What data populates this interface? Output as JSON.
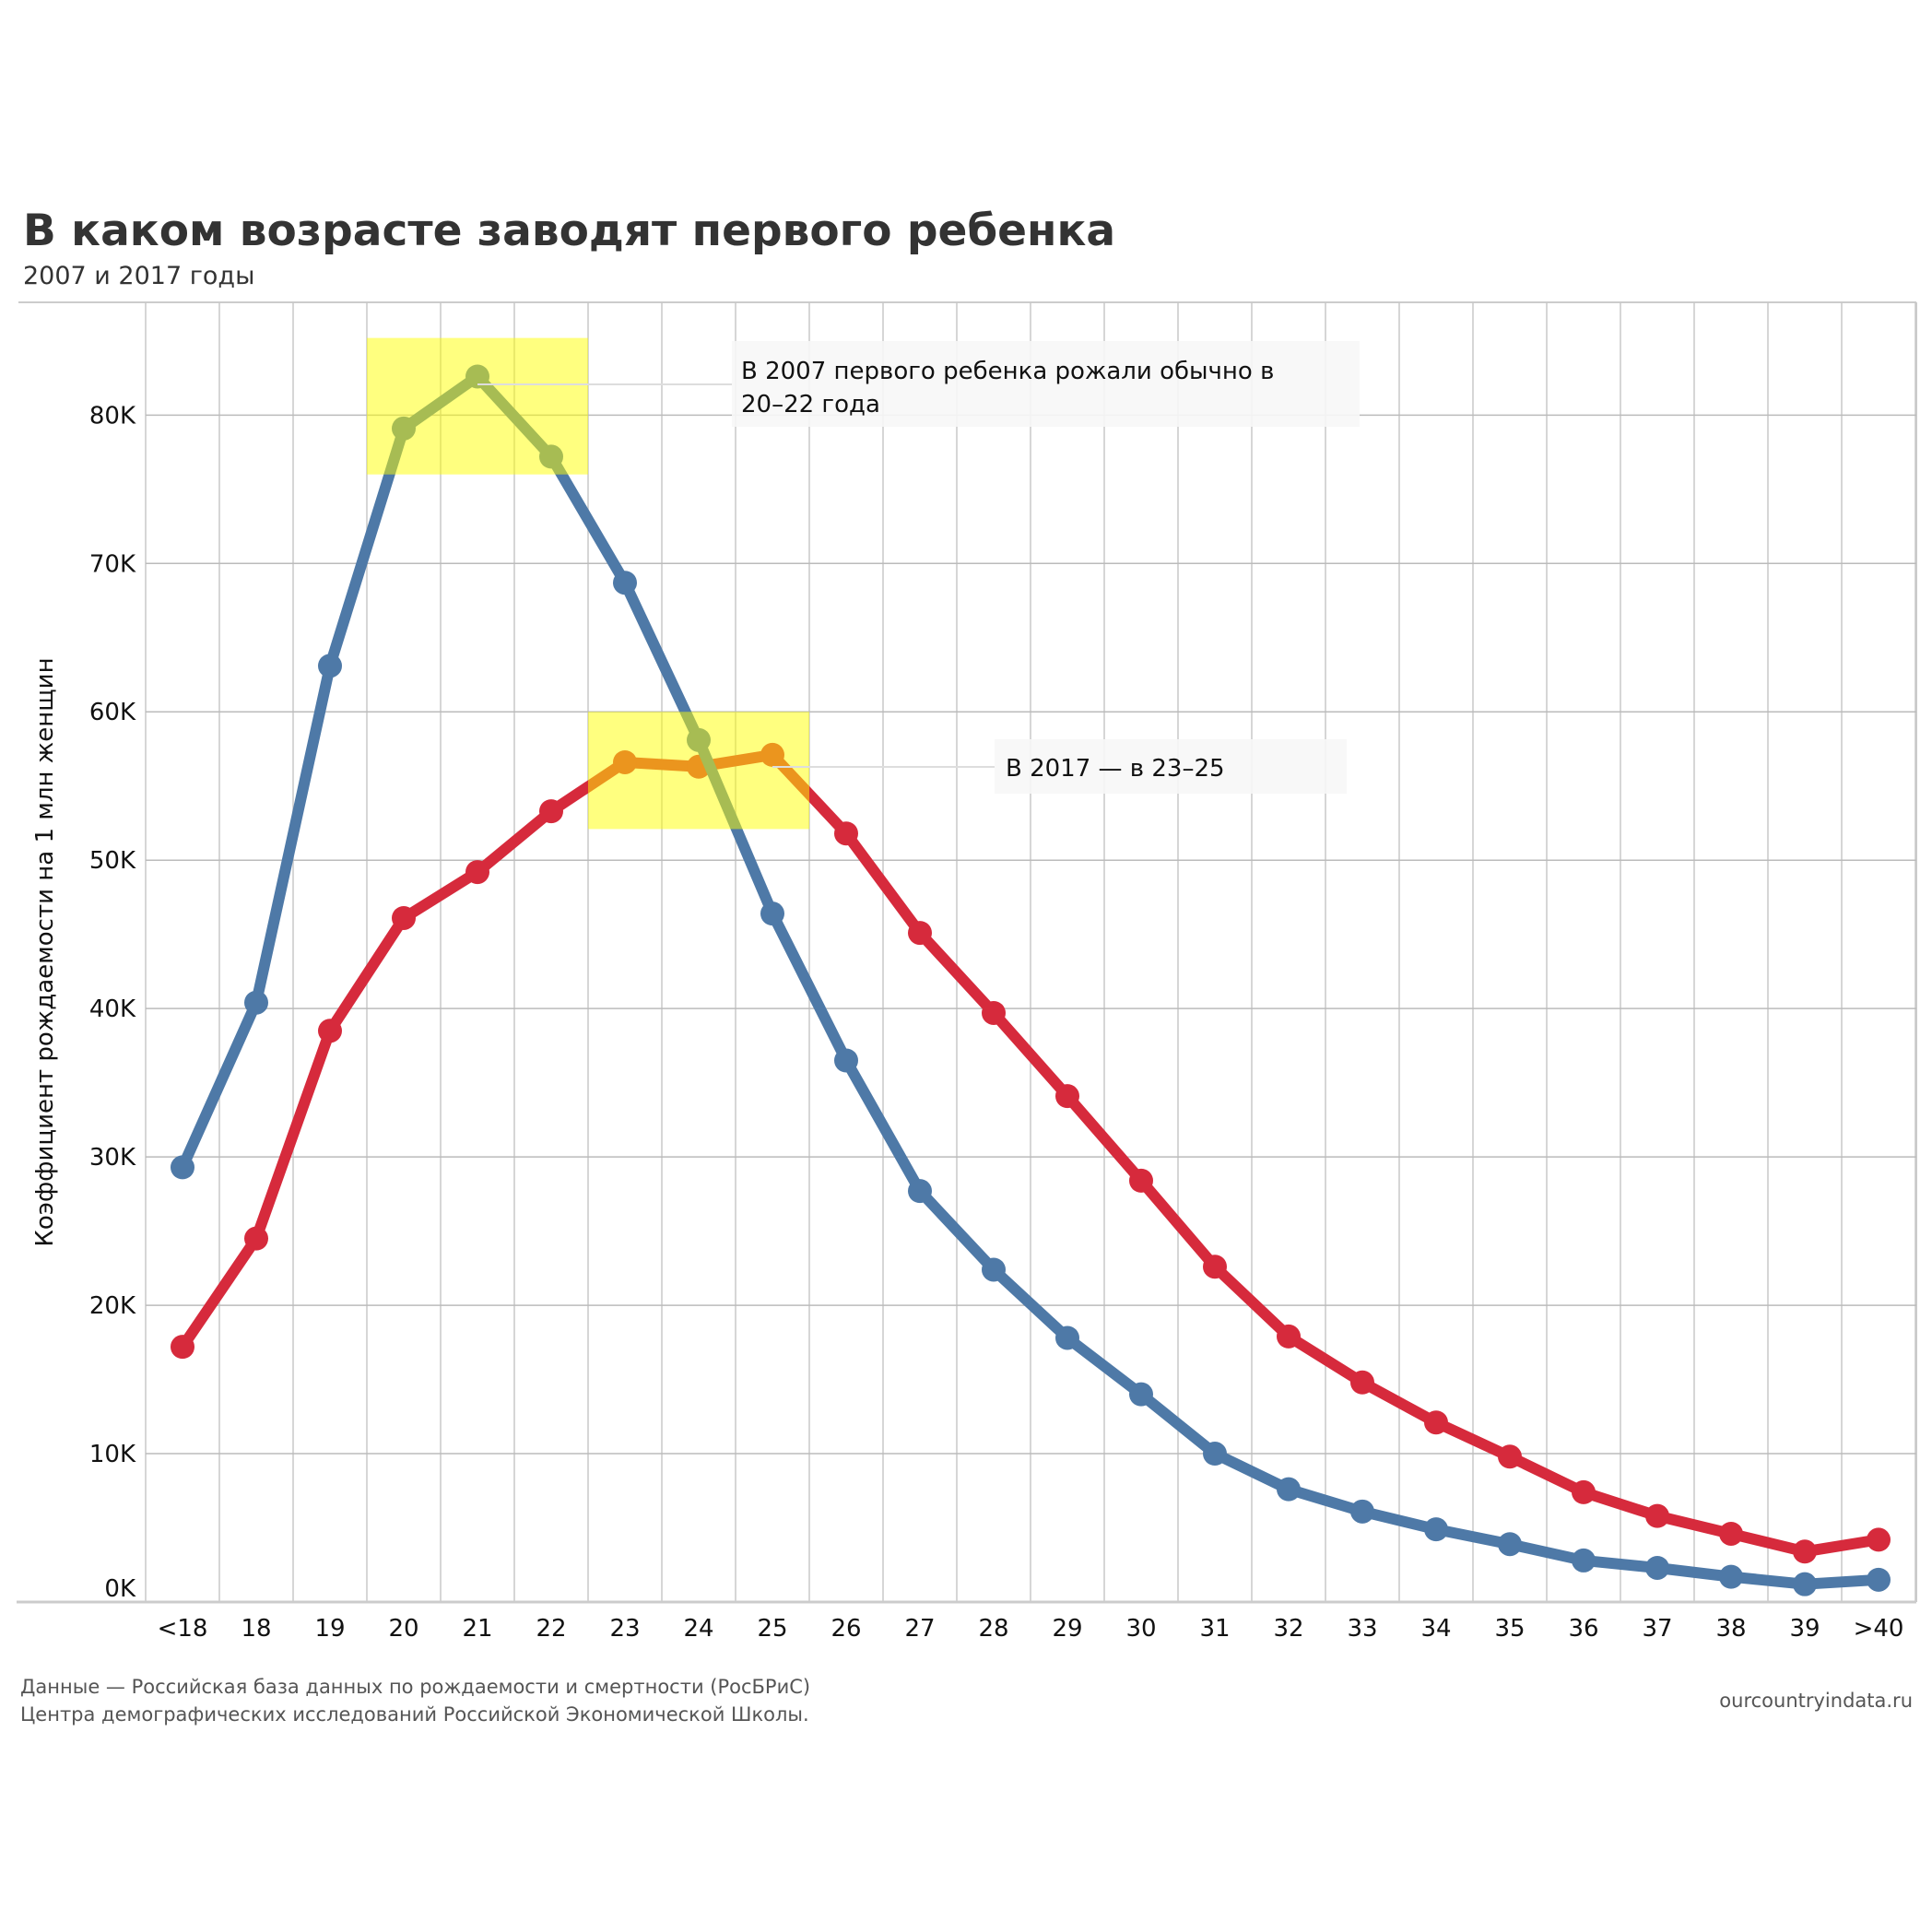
{
  "header": {
    "title": "В каком возрасте заводят первого ребенка",
    "subtitle": "2007 и 2017 годы"
  },
  "footer": {
    "source_line1": "Данные — Российская база данных по рождаемости и смертности (РосБРиС)",
    "source_line2": "Центра демографических исследований Российской Экономической Школы.",
    "site": "ourcountryindata.ru"
  },
  "chart_data": {
    "type": "line",
    "title": "В каком возрасте заводят первого ребенка",
    "subtitle": "2007 и 2017 годы",
    "xlabel": "",
    "ylabel": "Коэффициент рождаемости на 1 млн женщин",
    "ylim": [
      0,
      87600
    ],
    "yticks": [
      0,
      10000,
      20000,
      30000,
      40000,
      50000,
      60000,
      70000,
      80000
    ],
    "ytick_labels": [
      "0K",
      "10K",
      "20K",
      "30K",
      "40K",
      "50K",
      "60K",
      "70K",
      "80K"
    ],
    "grid": true,
    "categories": [
      "<18",
      "18",
      "19",
      "20",
      "21",
      "22",
      "23",
      "24",
      "25",
      "26",
      "27",
      "28",
      "29",
      "30",
      "31",
      "32",
      "33",
      "34",
      "35",
      "36",
      "37",
      "38",
      "39",
      ">40"
    ],
    "series": [
      {
        "name": "2007",
        "color": "#4e79a7",
        "values": [
          29300,
          40400,
          63100,
          79100,
          82600,
          77200,
          68700,
          58100,
          46400,
          36500,
          27700,
          22400,
          17800,
          14000,
          10000,
          7600,
          6100,
          4900,
          3900,
          2800,
          2300,
          1700,
          1200,
          1500
        ]
      },
      {
        "name": "2017",
        "color": "#d62a3c",
        "values": [
          17200,
          24500,
          38500,
          46100,
          49200,
          53300,
          56600,
          56300,
          57100,
          51800,
          45100,
          39700,
          34100,
          28400,
          22600,
          17900,
          14800,
          12100,
          9800,
          7400,
          5800,
          4600,
          3400,
          4200
        ]
      }
    ],
    "highlights": [
      {
        "from": "20",
        "to": "22",
        "y_range": [
          76000,
          85200
        ],
        "color": "#ffff00"
      },
      {
        "from": "23",
        "to": "25",
        "y_range": [
          52100,
          60000
        ],
        "color": "#ffff00"
      }
    ],
    "annotations": [
      {
        "text_line1": "В 2007 первого ребенка рожали обычно в",
        "text_line2": "20–22 года",
        "points_to": "21"
      },
      {
        "text_line1": "В 2017 — в 23–25",
        "points_to": "25"
      }
    ]
  }
}
